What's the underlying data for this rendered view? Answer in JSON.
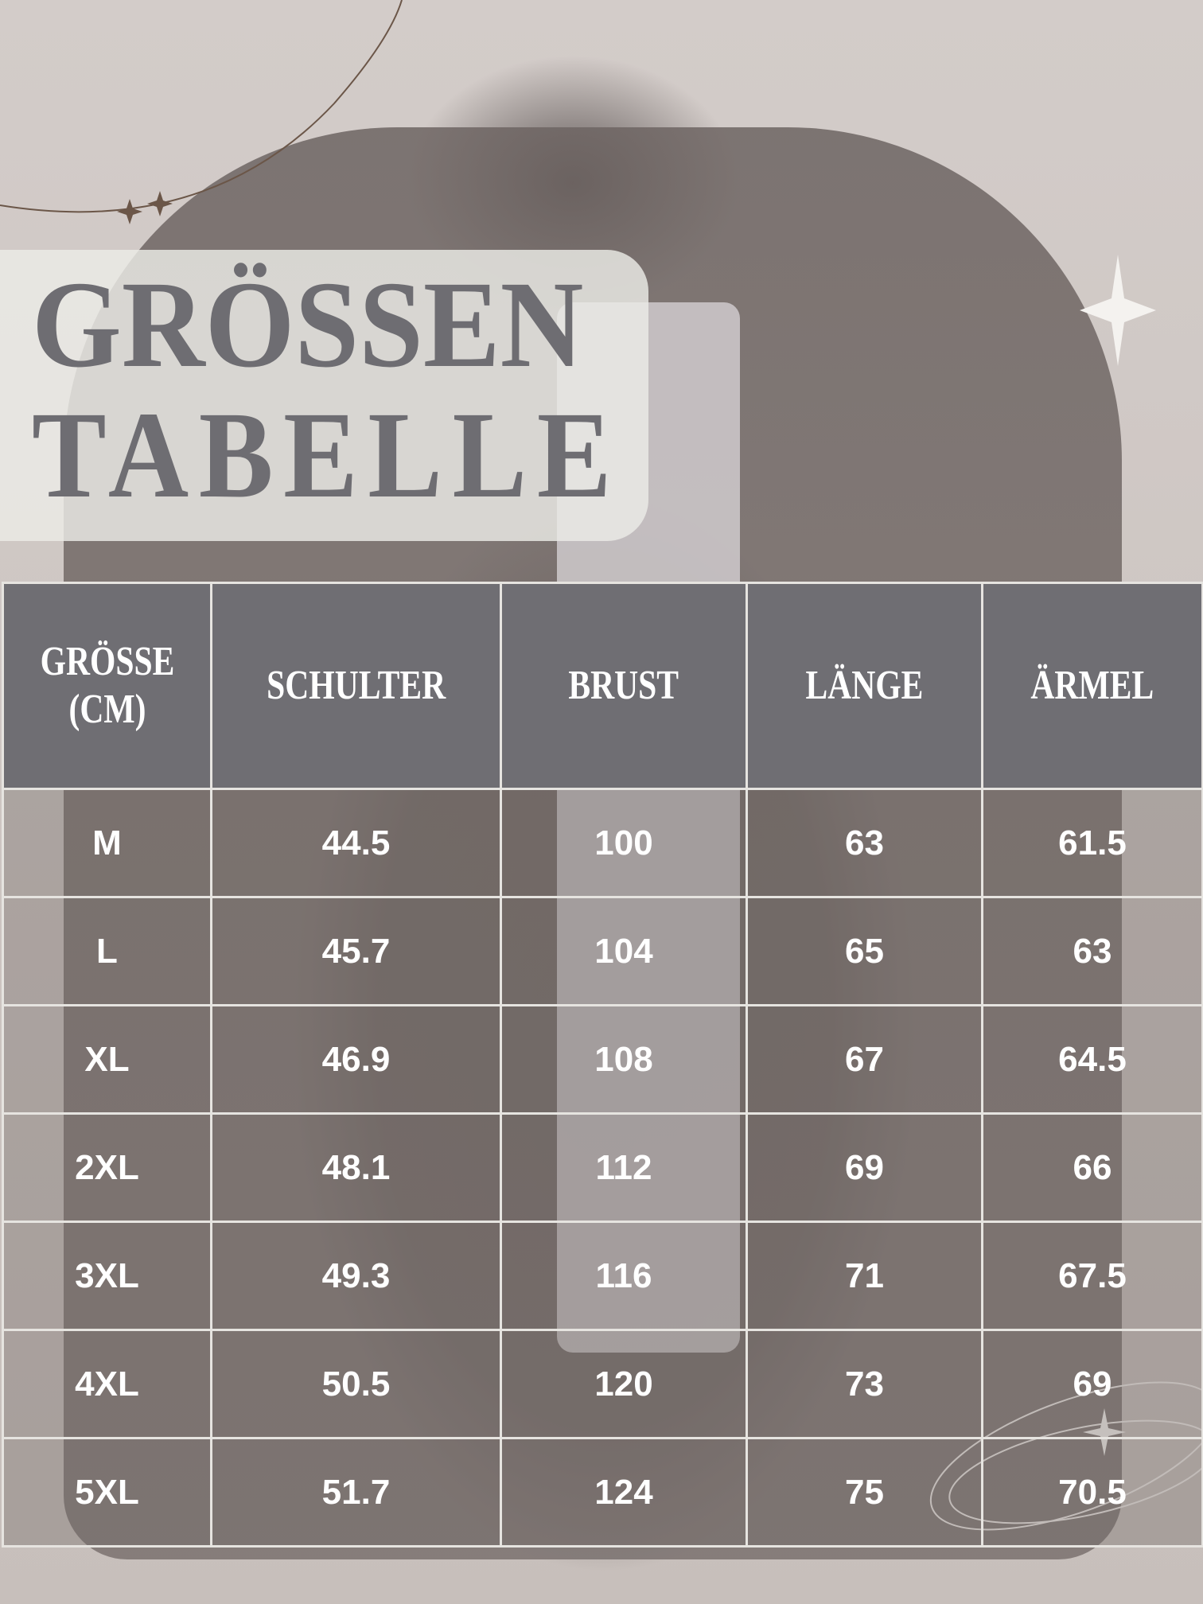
{
  "title": {
    "line1": "GRÖSSEN",
    "line2": "TABELLE"
  },
  "table": {
    "headers": [
      "GRÖSSE (CM)",
      "SCHULTER",
      "BRUST",
      "LÄNGE",
      "ÄRMEL"
    ],
    "rows": [
      [
        "M",
        "44.5",
        "100",
        "63",
        "61.5"
      ],
      [
        "L",
        "45.7",
        "104",
        "65",
        "63"
      ],
      [
        "XL",
        "46.9",
        "108",
        "67",
        "64.5"
      ],
      [
        "2XL",
        "48.1",
        "112",
        "69",
        "66"
      ],
      [
        "3XL",
        "49.3",
        "116",
        "71",
        "67.5"
      ],
      [
        "4XL",
        "50.5",
        "120",
        "73",
        "69"
      ],
      [
        "5XL",
        "51.7",
        "124",
        "75",
        "70.5"
      ]
    ]
  },
  "colors": {
    "header_bg": "#6f6e73",
    "title_text": "#6e6d72",
    "grid": "#e6e4e0",
    "background": "#cbc4c1"
  },
  "icons": [
    "sparkle-icon",
    "orbit-sparkle-icon"
  ]
}
